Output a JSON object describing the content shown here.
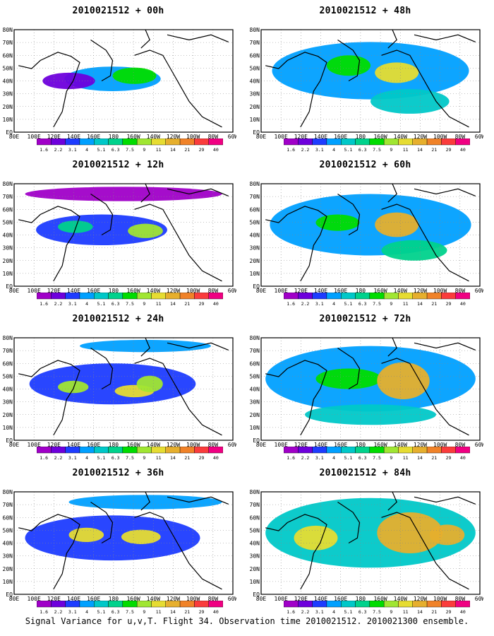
{
  "footer": "Signal Variance for u,v,T. Flight 34. Observation time 2010021512. 2010021300 ensemble.",
  "map": {
    "lat_labels": [
      "80N",
      "70N",
      "60N",
      "50N",
      "40N",
      "30N",
      "20N",
      "10N",
      "EQ"
    ],
    "lon_labels": [
      "80E",
      "100E",
      "120E",
      "140E",
      "160E",
      "180",
      "160W",
      "140W",
      "120W",
      "100W",
      "80W",
      "60W"
    ]
  },
  "colorbar": {
    "levels": [
      "1.6",
      "2.2",
      "3.1",
      "4",
      "5.1",
      "6.3",
      "7.5",
      "9",
      "11",
      "14",
      "21",
      "29",
      "40"
    ],
    "colors": [
      "#a000c8",
      "#6e00dc",
      "#1e3cff",
      "#00a0ff",
      "#00c8c8",
      "#00d28c",
      "#00dc00",
      "#a0e632",
      "#e6dc32",
      "#e6af2d",
      "#f08228",
      "#fa3c3c",
      "#f00082"
    ]
  },
  "panels": [
    {
      "title": "2010021512 + 00h",
      "intensity": 0
    },
    {
      "title": "2010021512 + 12h",
      "intensity": 1
    },
    {
      "title": "2010021512 + 24h",
      "intensity": 2
    },
    {
      "title": "2010021512 + 36h",
      "intensity": 3
    },
    {
      "title": "2010021512 + 48h",
      "intensity": 4
    },
    {
      "title": "2010021512 + 60h",
      "intensity": 5
    },
    {
      "title": "2010021512 + 72h",
      "intensity": 6
    },
    {
      "title": "2010021512 + 84h",
      "intensity": 7
    }
  ]
}
